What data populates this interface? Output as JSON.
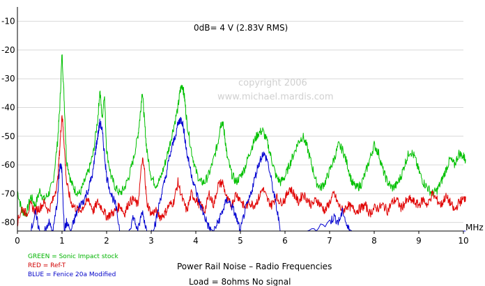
{
  "chart_data": {
    "type": "line",
    "xlabel": "MHz",
    "ylabel": "",
    "xlim": [
      0,
      10
    ],
    "ylim": [
      -83,
      -5
    ],
    "grid": true,
    "xticks": [
      "0",
      "1",
      "2",
      "3",
      "4",
      "5",
      "6",
      "7",
      "8",
      "9",
      "10"
    ],
    "yticks": [
      "-10",
      "-20",
      "-30",
      "-40",
      "-50",
      "-60",
      "-70",
      "-80"
    ],
    "annotations": {
      "ref": "0dB= 4 V (2.83V RMS)",
      "watermark_line1": "copyright    2006",
      "watermark_line2": "www.michael.mardis.com",
      "title": "Power Rail Noise – Radio Frequencies",
      "subtitle": "Load = 8ohms  No signal"
    },
    "legend": {
      "placement": "bottom-left",
      "entries": [
        {
          "text": "GREEN = Sonic Impact stock",
          "color": "#00b400"
        },
        {
          "text": "RED = Ref-T",
          "color": "#d00000"
        },
        {
          "text": "BLUE = Fenice 20a Modified",
          "color": "#0000c8"
        }
      ]
    },
    "series": [
      {
        "color": "#00c000",
        "x": [
          0,
          0.1,
          0.2,
          0.3,
          0.4,
          0.5,
          0.6,
          0.7,
          0.8,
          0.9,
          0.95,
          1.0,
          1.05,
          1.1,
          1.2,
          1.3,
          1.4,
          1.5,
          1.6,
          1.7,
          1.8,
          1.85,
          1.9,
          1.95,
          2.0,
          2.1,
          2.2,
          2.3,
          2.4,
          2.5,
          2.6,
          2.7,
          2.75,
          2.8,
          2.85,
          2.9,
          3.0,
          3.1,
          3.2,
          3.3,
          3.4,
          3.5,
          3.6,
          3.65,
          3.7,
          3.75,
          3.8,
          3.9,
          4.0,
          4.1,
          4.2,
          4.3,
          4.4,
          4.5,
          4.55,
          4.6,
          4.65,
          4.7,
          4.8,
          4.9,
          5.0,
          5.1,
          5.2,
          5.3,
          5.4,
          5.5,
          5.6,
          5.7,
          5.8,
          5.9,
          6.0,
          6.1,
          6.2,
          6.3,
          6.4,
          6.5,
          6.6,
          6.7,
          6.8,
          6.9,
          7.0,
          7.1,
          7.2,
          7.3,
          7.4,
          7.5,
          7.6,
          7.7,
          7.8,
          7.9,
          8.0,
          8.1,
          8.2,
          8.3,
          8.4,
          8.5,
          8.6,
          8.7,
          8.8,
          8.9,
          9.0,
          9.1,
          9.2,
          9.3,
          9.4,
          9.5,
          9.6,
          9.7,
          9.8,
          9.9,
          10.0,
          10.05
        ],
        "y": [
          -69,
          -76,
          -77,
          -71,
          -74,
          -69,
          -72,
          -70,
          -66,
          -52,
          -40,
          -21,
          -38,
          -58,
          -66,
          -69,
          -70,
          -66,
          -62,
          -56,
          -44,
          -34,
          -44,
          -35,
          -55,
          -64,
          -68,
          -70,
          -68,
          -64,
          -58,
          -50,
          -43,
          -34,
          -45,
          -55,
          -64,
          -67,
          -65,
          -60,
          -54,
          -47,
          -40,
          -34,
          -32,
          -37,
          -45,
          -55,
          -62,
          -66,
          -66,
          -63,
          -58,
          -52,
          -46,
          -45,
          -50,
          -57,
          -63,
          -66,
          -64,
          -61,
          -56,
          -52,
          -49,
          -48,
          -52,
          -58,
          -64,
          -66,
          -64,
          -60,
          -56,
          -52,
          -50,
          -54,
          -60,
          -66,
          -68,
          -66,
          -62,
          -58,
          -53,
          -55,
          -60,
          -66,
          -68,
          -67,
          -63,
          -58,
          -53,
          -56,
          -62,
          -66,
          -68,
          -67,
          -64,
          -59,
          -55,
          -57,
          -62,
          -66,
          -68,
          -70,
          -69,
          -66,
          -62,
          -58,
          -60,
          -56,
          -57,
          -58
        ]
      },
      {
        "color": "#e00000",
        "x": [
          0,
          0.1,
          0.2,
          0.3,
          0.4,
          0.5,
          0.6,
          0.7,
          0.8,
          0.9,
          0.95,
          1.0,
          1.05,
          1.1,
          1.2,
          1.3,
          1.4,
          1.5,
          1.6,
          1.7,
          1.8,
          1.9,
          2.0,
          2.1,
          2.2,
          2.3,
          2.4,
          2.5,
          2.6,
          2.7,
          2.8,
          2.85,
          2.9,
          3.0,
          3.1,
          3.2,
          3.3,
          3.4,
          3.5,
          3.6,
          3.7,
          3.8,
          3.9,
          4.0,
          4.1,
          4.2,
          4.3,
          4.4,
          4.5,
          4.6,
          4.7,
          4.8,
          4.9,
          5.0,
          5.1,
          5.2,
          5.3,
          5.4,
          5.5,
          5.6,
          5.7,
          5.8,
          5.9,
          6.0,
          6.1,
          6.2,
          6.3,
          6.4,
          6.5,
          6.6,
          6.7,
          6.8,
          6.9,
          7.0,
          7.1,
          7.2,
          7.3,
          7.4,
          7.5,
          7.6,
          7.7,
          7.8,
          7.9,
          8.0,
          8.1,
          8.2,
          8.3,
          8.4,
          8.5,
          8.6,
          8.7,
          8.8,
          8.9,
          9.0,
          9.1,
          9.2,
          9.3,
          9.4,
          9.5,
          9.6,
          9.7,
          9.8,
          9.9,
          10.0,
          10.05
        ],
        "y": [
          -80,
          -75,
          -77,
          -74,
          -76,
          -75,
          -73,
          -76,
          -72,
          -66,
          -54,
          -42,
          -53,
          -66,
          -73,
          -75,
          -76,
          -74,
          -72,
          -76,
          -73,
          -75,
          -78,
          -77,
          -76,
          -74,
          -77,
          -73,
          -72,
          -74,
          -58,
          -62,
          -73,
          -77,
          -76,
          -78,
          -77,
          -74,
          -73,
          -66,
          -72,
          -76,
          -70,
          -72,
          -74,
          -76,
          -70,
          -74,
          -67,
          -66,
          -72,
          -74,
          -70,
          -72,
          -75,
          -73,
          -74,
          -72,
          -68,
          -72,
          -74,
          -71,
          -73,
          -72,
          -68,
          -70,
          -73,
          -70,
          -72,
          -74,
          -72,
          -74,
          -76,
          -73,
          -70,
          -74,
          -76,
          -74,
          -75,
          -76,
          -75,
          -74,
          -77,
          -75,
          -75,
          -74,
          -76,
          -73,
          -72,
          -75,
          -73,
          -72,
          -73,
          -74,
          -72,
          -74,
          -70,
          -72,
          -74,
          -71,
          -73,
          -76,
          -73,
          -72,
          -71
        ]
      },
      {
        "color": "#0000d0",
        "x": [
          0,
          0.1,
          0.2,
          0.3,
          0.4,
          0.5,
          0.6,
          0.7,
          0.8,
          0.9,
          0.95,
          1.0,
          1.05,
          1.1,
          1.2,
          1.3,
          1.4,
          1.5,
          1.6,
          1.7,
          1.75,
          1.8,
          1.85,
          1.9,
          1.95,
          2.0,
          2.1,
          2.2,
          2.3,
          2.4,
          2.5,
          2.6,
          2.7,
          2.8,
          2.9,
          3.0,
          3.1,
          3.2,
          3.3,
          3.4,
          3.5,
          3.6,
          3.65,
          3.7,
          3.75,
          3.8,
          3.9,
          4.0,
          4.1,
          4.2,
          4.3,
          4.4,
          4.5,
          4.6,
          4.7,
          4.8,
          4.9,
          5.0,
          5.1,
          5.2,
          5.3,
          5.4,
          5.5,
          5.6,
          5.7,
          5.8,
          5.9,
          6.0,
          6.5,
          7.0,
          7.1,
          7.2,
          7.3,
          7.4,
          7.5,
          7.6,
          8.0,
          9.0,
          10.0,
          10.05
        ],
        "y": [
          -83,
          -83,
          -83,
          -83,
          -77,
          -83,
          -83,
          -80,
          -83,
          -72,
          -60,
          -62,
          -83,
          -80,
          -83,
          -78,
          -74,
          -72,
          -68,
          -62,
          -55,
          -50,
          -45,
          -48,
          -56,
          -64,
          -70,
          -74,
          -83,
          -83,
          -83,
          -78,
          -83,
          -76,
          -83,
          -83,
          -80,
          -72,
          -66,
          -58,
          -52,
          -46,
          -44,
          -45,
          -50,
          -56,
          -63,
          -69,
          -74,
          -78,
          -82,
          -83,
          -80,
          -76,
          -72,
          -74,
          -78,
          -83,
          -76,
          -72,
          -66,
          -60,
          -56,
          -58,
          -66,
          -74,
          -83,
          -83,
          -83,
          -80,
          -78,
          -80,
          -76,
          -82,
          -83,
          -83,
          -83,
          -83,
          -83,
          -83
        ]
      }
    ]
  }
}
